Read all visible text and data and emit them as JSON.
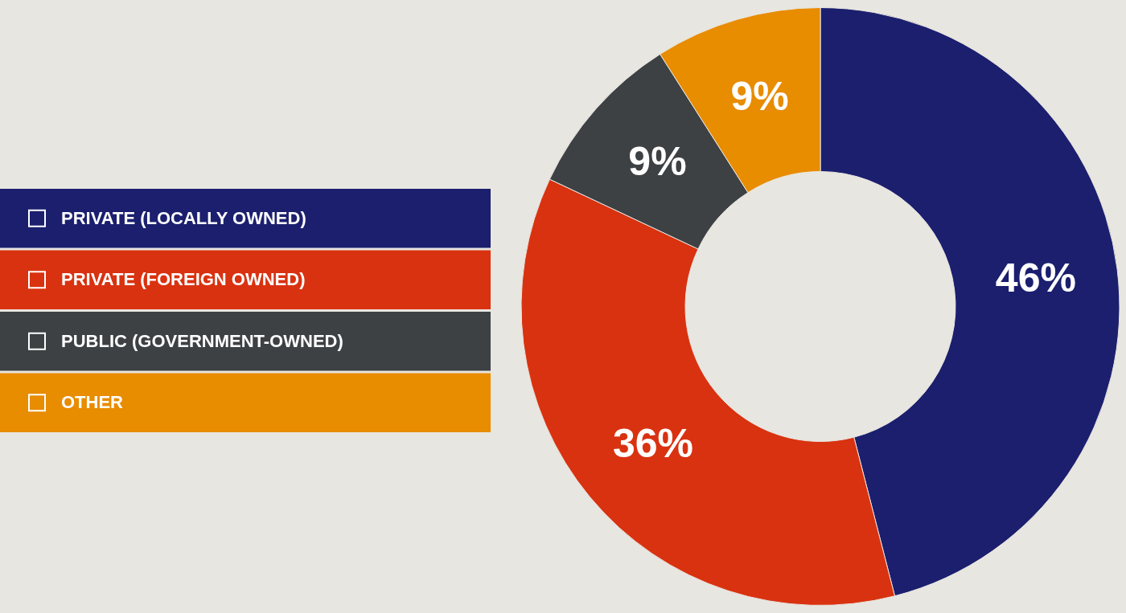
{
  "chart_data": {
    "type": "donut",
    "categories": [
      "PRIVATE (LOCALLY OWNED)",
      "PRIVATE (FOREIGN OWNED)",
      "PUBLIC (GOVERNMENT-OWNED)",
      "OTHER"
    ],
    "values": [
      46,
      36,
      9,
      9
    ],
    "colors": [
      "#1b1f6e",
      "#d93210",
      "#3d4144",
      "#e88c00"
    ],
    "value_labels": [
      "46%",
      "36%",
      "9%",
      "9%"
    ],
    "legend": "left"
  }
}
